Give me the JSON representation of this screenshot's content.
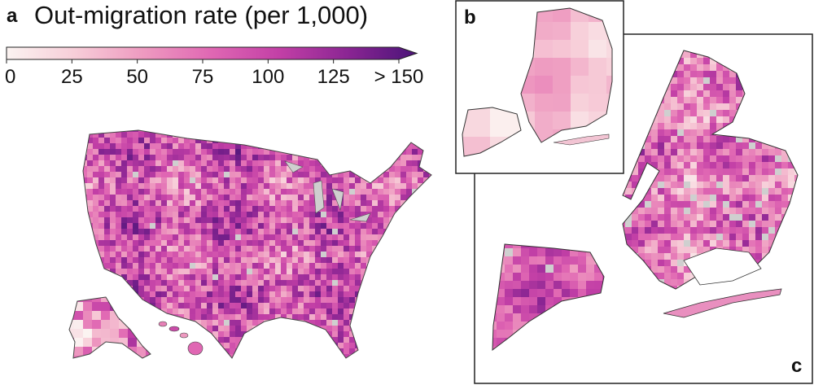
{
  "panels": {
    "a": "a",
    "b": "b",
    "c": "c"
  },
  "title": "Out-migration rate (per 1,000)",
  "colorbar": {
    "ticks": [
      {
        "value": 0,
        "label": "0"
      },
      {
        "value": 25,
        "label": "25"
      },
      {
        "value": 50,
        "label": "50"
      },
      {
        "value": 75,
        "label": "75"
      },
      {
        "value": 100,
        "label": "100"
      },
      {
        "value": 125,
        "label": "125"
      },
      {
        "value": 150,
        "label": "> 150"
      }
    ],
    "min": 0,
    "max": 150,
    "stops": [
      "#fbf3f1",
      "#f7cdd8",
      "#ee9ac0",
      "#e067b3",
      "#c23fa6",
      "#8a2593",
      "#4a1478"
    ]
  },
  "colors": {
    "missing": "#cfcfcf",
    "outline": "#333333"
  }
}
